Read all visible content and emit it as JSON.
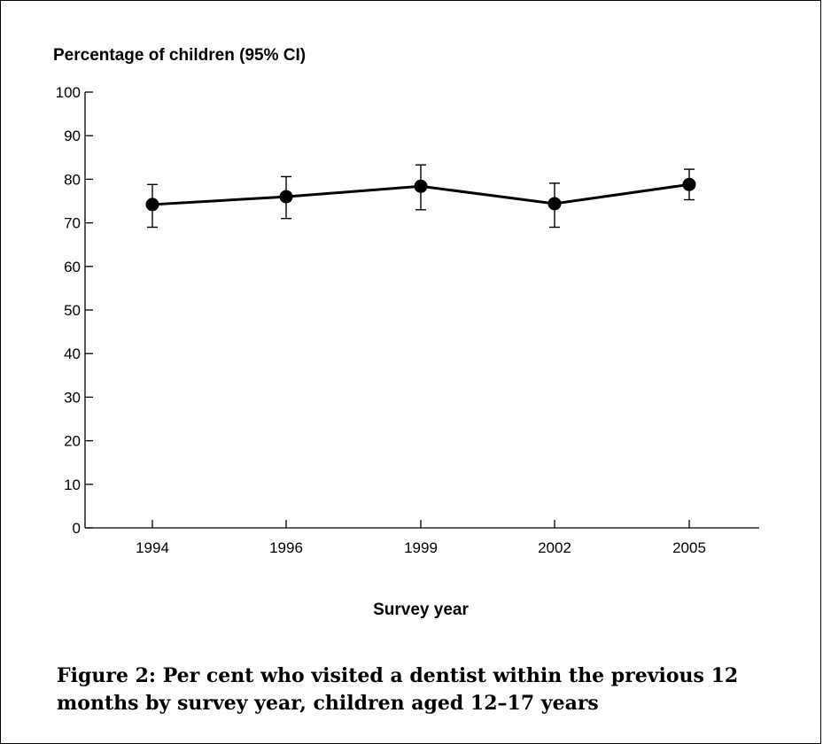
{
  "chart_data": {
    "type": "line",
    "ylabel": "Percentage of children (95% CI)",
    "xlabel": "Survey year",
    "categories": [
      "1994",
      "1996",
      "1999",
      "2002",
      "2005"
    ],
    "values": [
      74.2,
      76.0,
      78.4,
      74.4,
      78.8
    ],
    "ci_low": [
      69.0,
      71.0,
      73.0,
      69.0,
      75.3
    ],
    "ci_high": [
      78.8,
      80.6,
      83.3,
      79.1,
      82.3
    ],
    "ylim": [
      0,
      100
    ],
    "yticks": [
      "0",
      "10",
      "20",
      "30",
      "40",
      "50",
      "60",
      "70",
      "80",
      "90",
      "100"
    ],
    "grid": false,
    "color": "#000000"
  },
  "caption": "Figure 2: Per cent who visited a dentist within the previous 12 months by survey year, children aged 12–17 years"
}
